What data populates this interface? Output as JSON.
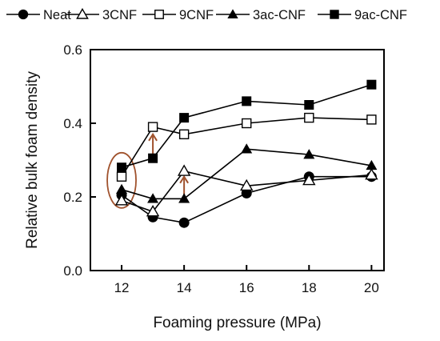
{
  "chart_data": {
    "type": "line",
    "title": "",
    "xlabel": "Foaming pressure (MPa)",
    "ylabel": "Relative bulk foam density",
    "x": [
      12,
      13,
      14,
      16,
      18,
      20
    ],
    "xlim": [
      11,
      20.4
    ],
    "ylim": [
      0.0,
      0.6
    ],
    "xticks": [
      "12",
      "14",
      "16",
      "18",
      "20"
    ],
    "yticks": [
      "0.0",
      "0.2",
      "0.4",
      "0.6"
    ],
    "grid": false,
    "legend_position": "top",
    "series": [
      {
        "name": "Neat",
        "marker": "filled-circle",
        "values": [
          0.205,
          0.145,
          0.13,
          0.21,
          0.255,
          0.255
        ]
      },
      {
        "name": "3CNF",
        "marker": "open-triangle",
        "values": [
          0.19,
          0.16,
          0.27,
          0.23,
          0.245,
          0.26
        ]
      },
      {
        "name": "9CNF",
        "marker": "open-square",
        "values": [
          0.255,
          0.39,
          0.37,
          0.4,
          0.415,
          0.41
        ]
      },
      {
        "name": "3ac-CNF",
        "marker": "filled-triangle",
        "values": [
          0.22,
          0.195,
          0.195,
          0.33,
          0.315,
          0.285
        ]
      },
      {
        "name": "9ac-CNF",
        "marker": "filled-square",
        "values": [
          0.28,
          0.305,
          0.415,
          0.46,
          0.45,
          0.505
        ]
      }
    ],
    "annotations": [
      {
        "kind": "ellipse",
        "color": "#a0522d",
        "x": 12,
        "y_range": [
          0.17,
          0.32
        ]
      },
      {
        "kind": "arrow",
        "color": "#a0522d",
        "x": 13,
        "from_y": 0.31,
        "to_y": 0.37
      },
      {
        "kind": "arrow",
        "color": "#a0522d",
        "x": 14,
        "from_y": 0.2,
        "to_y": 0.255
      }
    ]
  }
}
